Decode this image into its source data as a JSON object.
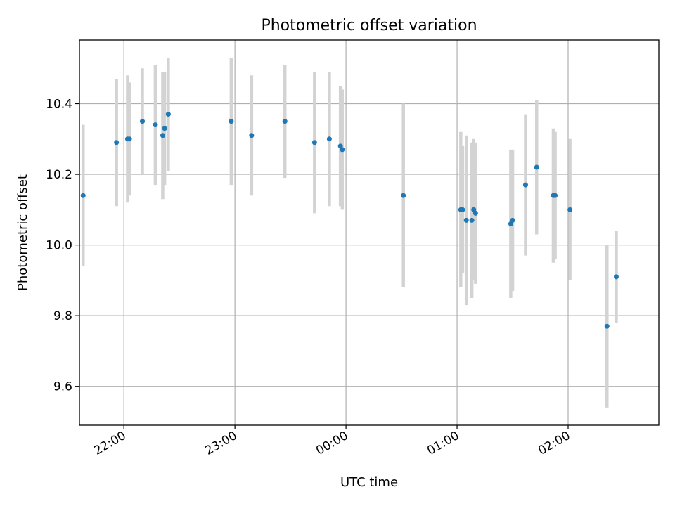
{
  "chart_data": {
    "type": "scatter",
    "title": "Photometric offset variation",
    "xlabel": "UTC time",
    "ylabel": "Photometric offset",
    "grid": true,
    "x_axis": {
      "kind": "time",
      "start": "21:36",
      "end": "02:49",
      "ticks": [
        "22:00",
        "23:00",
        "00:00",
        "01:00",
        "02:00"
      ]
    },
    "y_axis": {
      "ylim": [
        9.49,
        10.58
      ],
      "ticks": [
        9.6,
        9.8,
        10.0,
        10.2,
        10.4
      ],
      "tick_labels": [
        "9.6",
        "9.8",
        "10.0",
        "10.2",
        "10.4"
      ]
    },
    "colors": {
      "point": "#1f77b4",
      "errorbar": "#d3d3d3"
    },
    "points": [
      {
        "t": "21:38",
        "y": 10.14,
        "err": 0.2
      },
      {
        "t": "21:56",
        "y": 10.29,
        "err": 0.18
      },
      {
        "t": "22:02",
        "y": 10.3,
        "err": 0.18
      },
      {
        "t": "22:03",
        "y": 10.3,
        "err": 0.16
      },
      {
        "t": "22:10",
        "y": 10.35,
        "err": 0.15
      },
      {
        "t": "22:17",
        "y": 10.34,
        "err": 0.17
      },
      {
        "t": "22:21",
        "y": 10.31,
        "err": 0.18
      },
      {
        "t": "22:22",
        "y": 10.33,
        "err": 0.16
      },
      {
        "t": "22:24",
        "y": 10.37,
        "err": 0.16
      },
      {
        "t": "22:58",
        "y": 10.35,
        "err": 0.18
      },
      {
        "t": "23:09",
        "y": 10.31,
        "err": 0.17
      },
      {
        "t": "23:27",
        "y": 10.35,
        "err": 0.16
      },
      {
        "t": "23:43",
        "y": 10.29,
        "err": 0.2
      },
      {
        "t": "23:51",
        "y": 10.3,
        "err": 0.19
      },
      {
        "t": "23:57",
        "y": 10.28,
        "err": 0.17
      },
      {
        "t": "23:58",
        "y": 10.27,
        "err": 0.17
      },
      {
        "t": "00:31",
        "y": 10.14,
        "err": 0.26
      },
      {
        "t": "01:02",
        "y": 10.1,
        "err": 0.22
      },
      {
        "t": "01:03",
        "y": 10.1,
        "err": 0.18
      },
      {
        "t": "01:05",
        "y": 10.07,
        "err": 0.24
      },
      {
        "t": "01:08",
        "y": 10.07,
        "err": 0.22
      },
      {
        "t": "01:09",
        "y": 10.1,
        "err": 0.2
      },
      {
        "t": "01:10",
        "y": 10.09,
        "err": 0.2
      },
      {
        "t": "01:29",
        "y": 10.06,
        "err": 0.21
      },
      {
        "t": "01:30",
        "y": 10.07,
        "err": 0.2
      },
      {
        "t": "01:37",
        "y": 10.17,
        "err": 0.2
      },
      {
        "t": "01:43",
        "y": 10.22,
        "err": 0.19
      },
      {
        "t": "01:52",
        "y": 10.14,
        "err": 0.19
      },
      {
        "t": "01:53",
        "y": 10.14,
        "err": 0.18
      },
      {
        "t": "02:01",
        "y": 10.1,
        "err": 0.2
      },
      {
        "t": "02:21",
        "y": 9.77,
        "err": 0.23
      },
      {
        "t": "02:26",
        "y": 9.91,
        "err": 0.13
      }
    ]
  }
}
